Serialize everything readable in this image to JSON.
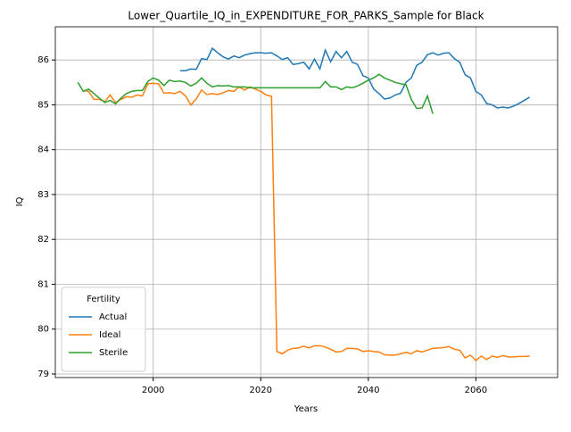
{
  "chart_data": {
    "type": "line",
    "title": "Lower_Quartile_IQ_in_EXPENDITURE_FOR_PARKS_Sample for Black",
    "xlabel": "Years",
    "ylabel": "IQ",
    "x": [
      1986,
      1987,
      1988,
      1989,
      1990,
      1991,
      1992,
      1993,
      1994,
      1995,
      1996,
      1997,
      1998,
      1999,
      2000,
      2001,
      2002,
      2003,
      2004,
      2005,
      2006,
      2007,
      2008,
      2009,
      2010,
      2011,
      2012,
      2013,
      2014,
      2015,
      2016,
      2017,
      2018,
      2019,
      2020,
      2021,
      2022,
      2023,
      2024,
      2025,
      2026,
      2027,
      2028,
      2029,
      2030,
      2031,
      2032,
      2033,
      2034,
      2035,
      2036,
      2037,
      2038,
      2039,
      2040,
      2041,
      2042,
      2043,
      2044,
      2045,
      2046,
      2047,
      2048,
      2049,
      2050,
      2051,
      2052,
      2053,
      2054,
      2055,
      2056,
      2057,
      2058,
      2059,
      2060,
      2061,
      2062,
      2063,
      2064,
      2065,
      2066,
      2067,
      2068,
      2069,
      2070
    ],
    "series": [
      {
        "name": "Actual",
        "color": "#1f77b4",
        "values": [
          null,
          null,
          null,
          null,
          null,
          null,
          null,
          null,
          null,
          null,
          null,
          null,
          null,
          null,
          null,
          null,
          null,
          null,
          null,
          85.76,
          85.76,
          85.8,
          85.79,
          86.03,
          86.01,
          86.26,
          86.16,
          86.07,
          86.02,
          86.09,
          86.05,
          86.11,
          86.14,
          86.16,
          86.16,
          86.15,
          86.16,
          86.09,
          86.01,
          86.05,
          85.9,
          85.92,
          85.95,
          85.8,
          86.02,
          85.8,
          86.22,
          85.96,
          86.19,
          86.05,
          86.19,
          85.95,
          85.9,
          85.65,
          85.6,
          85.35,
          85.25,
          85.13,
          85.15,
          85.22,
          85.26,
          85.5,
          85.6,
          85.88,
          85.95,
          86.12,
          86.16,
          86.11,
          86.15,
          86.16,
          86.03,
          85.95,
          85.67,
          85.6,
          85.3,
          85.22,
          85.03,
          85.0,
          84.93,
          84.95,
          84.93,
          84.97,
          85.03,
          85.1,
          85.17
        ]
      },
      {
        "name": "Ideal",
        "color": "#ff7f0e",
        "values": [
          null,
          85.32,
          85.3,
          85.12,
          85.12,
          85.07,
          85.22,
          85.05,
          85.12,
          85.18,
          85.17,
          85.22,
          85.2,
          85.47,
          85.48,
          85.47,
          85.26,
          85.27,
          85.25,
          85.3,
          85.2,
          85.0,
          85.13,
          85.33,
          85.23,
          85.25,
          85.23,
          85.27,
          85.32,
          85.3,
          85.4,
          85.33,
          85.4,
          85.35,
          85.3,
          85.22,
          85.19,
          79.5,
          79.45,
          79.53,
          79.57,
          79.58,
          79.62,
          79.58,
          79.63,
          79.63,
          79.6,
          79.55,
          79.49,
          79.5,
          79.57,
          79.57,
          79.56,
          79.5,
          79.52,
          79.5,
          79.49,
          79.43,
          79.42,
          79.42,
          79.45,
          79.48,
          79.45,
          79.52,
          79.49,
          79.53,
          79.57,
          79.58,
          79.59,
          79.61,
          79.55,
          79.53,
          79.36,
          79.42,
          79.3,
          79.4,
          79.32,
          79.4,
          79.37,
          79.41,
          79.38,
          79.38,
          79.39,
          79.39,
          79.4
        ]
      },
      {
        "name": "Sterile",
        "color": "#2ca02c",
        "values": [
          85.5,
          85.3,
          85.35,
          85.25,
          85.15,
          85.05,
          85.1,
          85.02,
          85.15,
          85.25,
          85.3,
          85.32,
          85.32,
          85.52,
          85.6,
          85.55,
          85.43,
          85.55,
          85.52,
          85.53,
          85.5,
          85.42,
          85.48,
          85.6,
          85.48,
          85.4,
          85.43,
          85.42,
          85.43,
          85.4,
          85.4,
          85.4,
          85.38,
          85.38,
          85.38,
          85.38,
          85.38,
          85.38,
          85.38,
          85.38,
          85.38,
          85.38,
          85.38,
          85.38,
          85.38,
          85.38,
          85.52,
          85.4,
          85.4,
          85.34,
          85.4,
          85.38,
          85.42,
          85.48,
          85.55,
          85.6,
          85.68,
          85.6,
          85.55,
          85.5,
          85.47,
          85.45,
          85.12,
          84.92,
          84.93,
          85.2,
          84.8,
          null,
          null,
          null,
          null,
          null,
          null,
          null,
          null,
          null,
          null,
          null,
          null,
          null,
          null,
          null,
          null,
          null,
          null
        ]
      }
    ],
    "xlim": [
      1981.8,
      2075.2
    ],
    "xticks": [
      2000,
      2020,
      2040,
      2060
    ],
    "ylim": [
      78.92,
      86.74
    ],
    "yticks": [
      79,
      80,
      81,
      82,
      83,
      84,
      85,
      86
    ],
    "grid": true,
    "legend_title": "Fertility",
    "legend_position": "lower left"
  }
}
